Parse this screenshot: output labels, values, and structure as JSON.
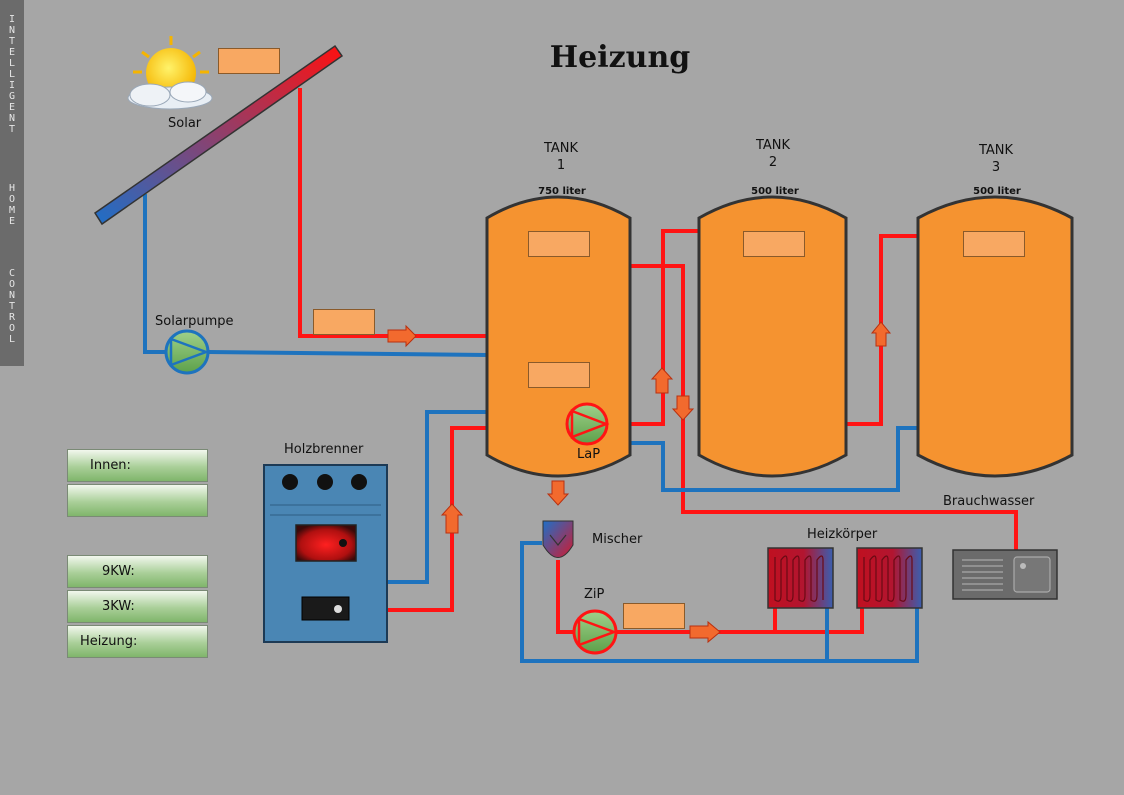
{
  "brand": {
    "word1": "INTELLIGENT",
    "word2": "HOME",
    "word3": "CONTROL"
  },
  "title": "Heizung",
  "labels": {
    "solar": "Solar",
    "solarpumpe": "Solarpumpe",
    "holzbrenner": "Holzbrenner",
    "lap": "LaP",
    "mischer": "Mischer",
    "zip": "ZiP",
    "heizkoerper": "Heizkörper",
    "brauchwasser": "Brauchwasser"
  },
  "tanks": [
    {
      "name": "TANK",
      "number": "1",
      "capacity": "750 liter"
    },
    {
      "name": "TANK",
      "number": "2",
      "capacity": "500 liter"
    },
    {
      "name": "TANK",
      "number": "3",
      "capacity": "500 liter"
    }
  ],
  "panel": {
    "innen": "Innen:",
    "innen_value": "",
    "kw9": "9KW:",
    "kw3": "3KW:",
    "heizung": "Heizung:"
  },
  "colors": {
    "background": "#a6a6a6",
    "hot_pipe": "#ff1414",
    "cold_pipe": "#1e73be",
    "tank_fill": "#f59330",
    "boiler": "#4a86b4",
    "value_box": "#f8a862"
  }
}
